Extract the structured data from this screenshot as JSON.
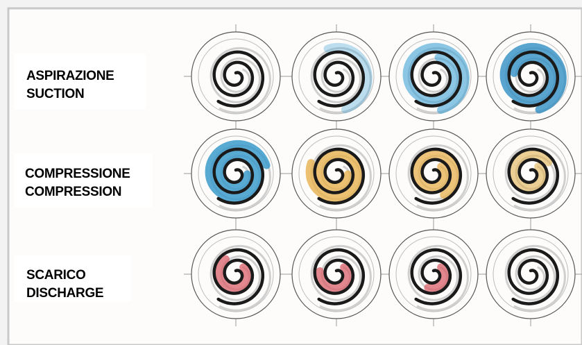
{
  "rows": [
    {
      "label_it": "ASPIRAZIONE",
      "label_en": "SUCTION"
    },
    {
      "label_it": "COMPRESSIONE",
      "label_en": "COMPRESSION"
    },
    {
      "label_it": "SCARICO",
      "label_en": "DISCHARGE"
    }
  ]
}
